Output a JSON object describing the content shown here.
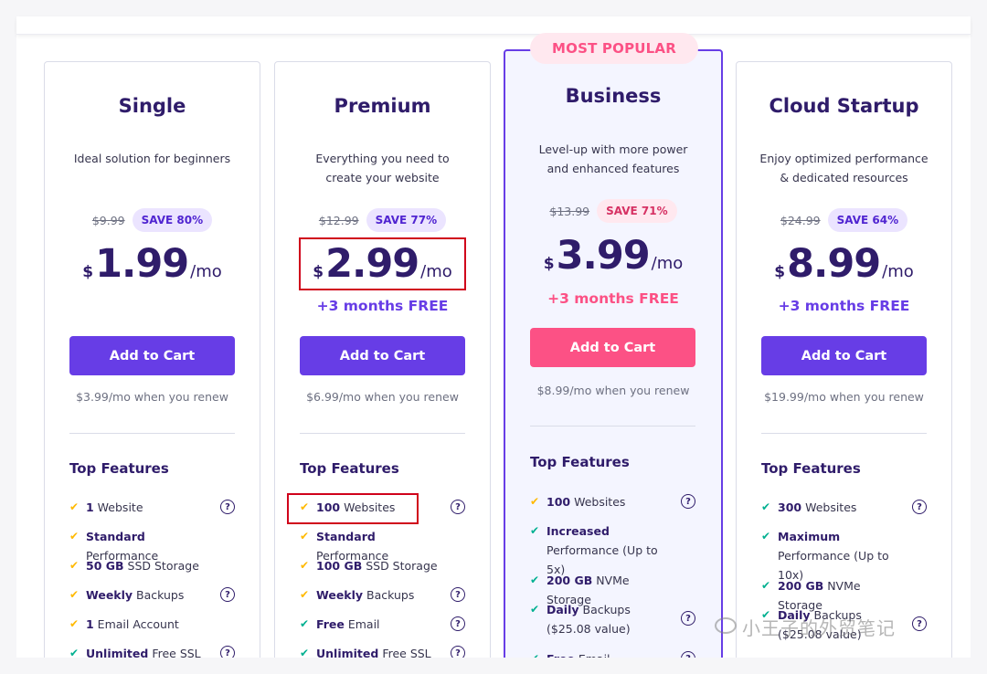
{
  "popular_label": "MOST POPULAR",
  "features_title": "Top Features",
  "help_glyph": "?",
  "check_glyph": "✔",
  "watermark": "小王子的外贸笔记",
  "colors": {
    "brand": "#673de6",
    "accent": "#fc5185",
    "heading": "#2f1c6a",
    "highlight": "#d0021b"
  },
  "plans": [
    {
      "name": "Single",
      "description": "Ideal solution for beginners",
      "old_price": "$9.99",
      "save": "SAVE 80%",
      "currency": "$",
      "price": "1.99",
      "period": "/mo",
      "bonus": "",
      "cart_label": "Add to Cart",
      "renew": "$3.99/mo when you renew",
      "features": [
        {
          "bold": "1",
          "text": " Website",
          "help": true
        },
        {
          "bold": "Standard",
          "text": " Performance",
          "help": false
        },
        {
          "bold": "50 GB",
          "text": " SSD Storage",
          "help": false
        },
        {
          "bold": "Weekly",
          "text": " Backups",
          "help": true
        },
        {
          "bold": "1",
          "text": " Email Account",
          "help": false
        },
        {
          "bold": "Unlimited",
          "text": " Free SSL",
          "help": true
        }
      ]
    },
    {
      "name": "Premium",
      "description": "Everything you need to create your website",
      "old_price": "$12.99",
      "save": "SAVE 77%",
      "currency": "$",
      "price": "2.99",
      "period": "/mo",
      "bonus": "+3 months FREE",
      "cart_label": "Add to Cart",
      "renew": "$6.99/mo when you renew",
      "features": [
        {
          "bold": "100",
          "text": " Websites",
          "help": true
        },
        {
          "bold": "Standard",
          "text": " Performance",
          "help": false
        },
        {
          "bold": "100 GB",
          "text": " SSD Storage",
          "help": false
        },
        {
          "bold": "Weekly",
          "text": " Backups",
          "help": true
        },
        {
          "bold": "Free",
          "text": " Email",
          "help": true
        },
        {
          "bold": "Unlimited",
          "text": " Free SSL",
          "help": true
        }
      ]
    },
    {
      "name": "Business",
      "description": "Level-up with more power and enhanced features",
      "old_price": "$13.99",
      "save": "SAVE 71%",
      "currency": "$",
      "price": "3.99",
      "period": "/mo",
      "bonus": "+3 months FREE",
      "cart_label": "Add to Cart",
      "renew": "$8.99/mo when you renew",
      "features": [
        {
          "bold": "100",
          "text": " Websites",
          "help": true
        },
        {
          "bold": "Increased",
          "text": " Performance (Up to 5x)",
          "help": false
        },
        {
          "bold": "200 GB",
          "text": " NVMe Storage",
          "help": false
        },
        {
          "bold": "Daily",
          "text": " Backups ($25.08 value)",
          "help": true
        },
        {
          "bold": "Free",
          "text": " Email",
          "help": true
        }
      ]
    },
    {
      "name": "Cloud Startup",
      "description": "Enjoy optimized performance & dedicated resources",
      "old_price": "$24.99",
      "save": "SAVE 64%",
      "currency": "$",
      "price": "8.99",
      "period": "/mo",
      "bonus": "+3 months FREE",
      "cart_label": "Add to Cart",
      "renew": "$19.99/mo when you renew",
      "features": [
        {
          "bold": "300",
          "text": " Websites",
          "help": true
        },
        {
          "bold": "Maximum",
          "text": " Performance (Up to 10x)",
          "help": false
        },
        {
          "bold": "200 GB",
          "text": " NVMe Storage",
          "help": false
        },
        {
          "bold": "Daily",
          "text": " Backups ($25.08 value)",
          "help": true
        }
      ]
    }
  ]
}
